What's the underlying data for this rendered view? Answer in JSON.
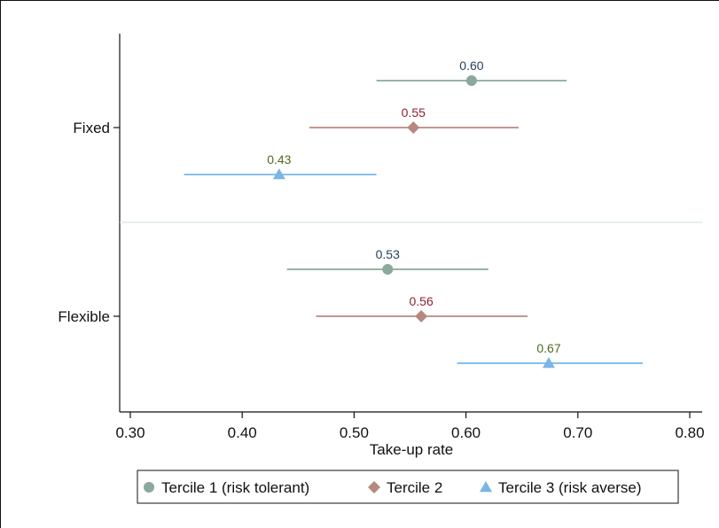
{
  "chart_data": {
    "type": "dot-plot-with-confidence-intervals",
    "xlabel": "Take-up rate",
    "ylabel": "",
    "xlim": [
      0.3,
      0.8
    ],
    "xticks": [
      0.3,
      0.4,
      0.5,
      0.6,
      0.7,
      0.8
    ],
    "xtick_labels": [
      "0.30",
      "0.40",
      "0.50",
      "0.60",
      "0.70",
      "0.80"
    ],
    "groups": [
      "Fixed",
      "Flexible"
    ],
    "grid": false,
    "legend_position": "bottom",
    "series": [
      {
        "name": "Tercile 1 (risk tolerant)",
        "marker": "circle",
        "color": "#8aa89c",
        "label_color": "#27415e",
        "points": [
          {
            "group": "Fixed",
            "value": 0.605,
            "label": "0.60",
            "ci": [
              0.52,
              0.69
            ]
          },
          {
            "group": "Flexible",
            "value": 0.53,
            "label": "0.53",
            "ci": [
              0.44,
              0.62
            ]
          }
        ]
      },
      {
        "name": "Tercile 2",
        "marker": "diamond",
        "color": "#b7887f",
        "label_color": "#8b2230",
        "points": [
          {
            "group": "Fixed",
            "value": 0.553,
            "label": "0.55",
            "ci": [
              0.46,
              0.647
            ]
          },
          {
            "group": "Flexible",
            "value": 0.56,
            "label": "0.56",
            "ci": [
              0.466,
              0.655
            ]
          }
        ]
      },
      {
        "name": "Tercile 3 (risk averse)",
        "marker": "triangle",
        "color": "#79b6e6",
        "label_color": "#4f6b1f",
        "points": [
          {
            "group": "Fixed",
            "value": 0.433,
            "label": "0.43",
            "ci": [
              0.348,
              0.52
            ]
          },
          {
            "group": "Flexible",
            "value": 0.674,
            "label": "0.67",
            "ci": [
              0.592,
              0.758
            ]
          }
        ]
      }
    ]
  }
}
